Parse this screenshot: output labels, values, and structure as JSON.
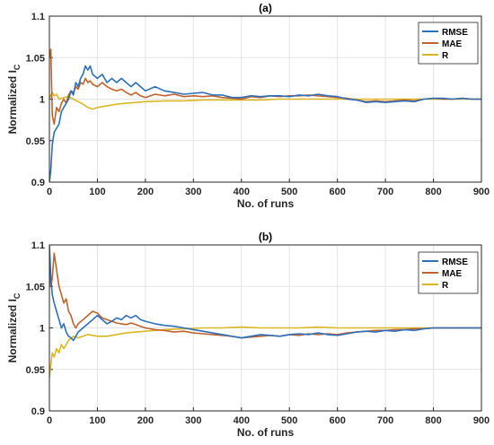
{
  "chart_data": [
    {
      "type": "line",
      "title": "(a)",
      "xlabel": "No. of runs",
      "ylabel": "Normalized I",
      "ylabel_sub": "C",
      "xlim": [
        0,
        900
      ],
      "ylim": [
        0.9,
        1.1
      ],
      "xticks": [
        "0",
        "100",
        "200",
        "300",
        "400",
        "500",
        "600",
        "700",
        "800",
        "900"
      ],
      "yticks": [
        "0.9",
        "0.95",
        "1",
        "1.05",
        "1.1"
      ],
      "grid": true,
      "legend": "top-right",
      "series": [
        {
          "name": "RMSE",
          "color": "#2e6fba",
          "x": [
            0,
            3,
            6,
            10,
            15,
            20,
            25,
            30,
            35,
            40,
            45,
            50,
            55,
            60,
            65,
            70,
            75,
            80,
            85,
            90,
            100,
            110,
            120,
            130,
            140,
            150,
            160,
            170,
            180,
            190,
            200,
            220,
            240,
            260,
            280,
            300,
            320,
            340,
            360,
            380,
            400,
            420,
            440,
            460,
            480,
            500,
            520,
            540,
            560,
            580,
            600,
            620,
            640,
            660,
            680,
            700,
            720,
            740,
            760,
            780,
            800,
            820,
            840,
            860,
            880,
            900
          ],
          "y": [
            0.9,
            0.915,
            0.945,
            0.96,
            0.965,
            0.97,
            0.985,
            0.99,
            0.995,
            1.0,
            1.01,
            1.005,
            1.02,
            1.015,
            1.025,
            1.03,
            1.04,
            1.035,
            1.04,
            1.03,
            1.025,
            1.03,
            1.02,
            1.025,
            1.02,
            1.025,
            1.02,
            1.015,
            1.02,
            1.015,
            1.01,
            1.015,
            1.01,
            1.008,
            1.006,
            1.007,
            1.008,
            1.005,
            1.005,
            1.002,
            1.002,
            1.004,
            1.003,
            1.004,
            1.004,
            1.003,
            1.005,
            1.004,
            1.006,
            1.004,
            1.003,
            1.0,
            0.999,
            0.996,
            0.997,
            0.996,
            0.997,
            0.998,
            0.997,
            1.0,
            1.001,
            1.001,
            1.0,
            1.001,
            1.0,
            1.0
          ]
        },
        {
          "name": "MAE",
          "color": "#c0622b",
          "x": [
            0,
            3,
            6,
            10,
            15,
            20,
            25,
            30,
            35,
            40,
            45,
            50,
            55,
            60,
            65,
            70,
            75,
            80,
            85,
            90,
            100,
            110,
            120,
            130,
            140,
            150,
            160,
            170,
            180,
            190,
            200,
            220,
            240,
            260,
            280,
            300,
            320,
            340,
            360,
            380,
            400,
            420,
            440,
            460,
            480,
            500,
            520,
            540,
            560,
            580,
            600,
            620,
            640,
            660,
            680,
            700,
            720,
            740,
            760,
            780,
            800,
            820,
            840,
            860,
            880,
            900
          ],
          "y": [
            1.05,
            1.06,
            0.98,
            0.97,
            0.99,
            0.985,
            0.995,
            1.0,
            0.995,
            1.005,
            1.01,
            1.008,
            1.015,
            1.012,
            1.02,
            1.018,
            1.025,
            1.02,
            1.022,
            1.018,
            1.015,
            1.02,
            1.015,
            1.012,
            1.01,
            1.012,
            1.008,
            1.005,
            1.008,
            1.004,
            1.002,
            1.006,
            1.004,
            1.006,
            1.003,
            1.004,
            1.003,
            1.004,
            1.002,
            1.001,
            1.0,
            1.003,
            1.002,
            1.004,
            1.003,
            1.004,
            1.004,
            1.005,
            1.004,
            1.003,
            1.002,
            1.001,
            0.999,
            0.997,
            0.998,
            0.997,
            0.998,
            0.999,
            0.998,
            1.0,
            1.001,
            1.0,
            1.0,
            1.001,
            1.0,
            1.0
          ]
        },
        {
          "name": "R",
          "color": "#dab825",
          "x": [
            0,
            3,
            6,
            10,
            15,
            20,
            30,
            40,
            50,
            60,
            70,
            80,
            90,
            100,
            120,
            140,
            160,
            180,
            200,
            240,
            280,
            320,
            360,
            400,
            440,
            480,
            520,
            560,
            600,
            650,
            700,
            750,
            800,
            850,
            900
          ],
          "y": [
            1.0,
            1.005,
            1.008,
            1.004,
            1.006,
            1.0,
            1.002,
            1.003,
            1.0,
            0.997,
            0.994,
            0.99,
            0.988,
            0.99,
            0.992,
            0.994,
            0.995,
            0.996,
            0.997,
            0.998,
            0.998,
            0.999,
            0.999,
            0.999,
            0.999,
            1.0,
            1.0,
            1.0,
            1.0,
            1.0,
            1.0,
            1.0,
            1.0,
            1.0,
            1.0
          ]
        }
      ]
    },
    {
      "type": "line",
      "title": "(b)",
      "xlabel": "No. of runs",
      "ylabel": "Normalized I",
      "ylabel_sub": "C",
      "xlim": [
        0,
        900
      ],
      "ylim": [
        0.9,
        1.1
      ],
      "xticks": [
        "0",
        "100",
        "200",
        "300",
        "400",
        "500",
        "600",
        "700",
        "800",
        "900"
      ],
      "yticks": [
        "0.9",
        "0.95",
        "1",
        "1.05",
        "1.1"
      ],
      "grid": true,
      "legend": "top-right",
      "series": [
        {
          "name": "RMSE",
          "color": "#2e6fba",
          "x": [
            0,
            3,
            6,
            10,
            15,
            20,
            25,
            30,
            35,
            40,
            45,
            50,
            55,
            60,
            70,
            80,
            90,
            100,
            110,
            120,
            130,
            140,
            150,
            160,
            170,
            180,
            190,
            200,
            220,
            240,
            260,
            280,
            300,
            320,
            340,
            360,
            380,
            400,
            420,
            440,
            460,
            480,
            500,
            520,
            540,
            560,
            580,
            600,
            620,
            640,
            660,
            680,
            700,
            720,
            740,
            760,
            780,
            800,
            820,
            840,
            860,
            880,
            900
          ],
          "y": [
            1.1,
            1.06,
            1.04,
            1.03,
            1.02,
            1.01,
            1.0,
            1.005,
            0.995,
            0.99,
            0.988,
            0.985,
            0.99,
            0.995,
            1.0,
            1.005,
            1.01,
            1.015,
            1.01,
            1.005,
            1.008,
            1.012,
            1.01,
            1.015,
            1.012,
            1.015,
            1.01,
            1.008,
            1.005,
            1.003,
            1.002,
            1.0,
            0.998,
            0.996,
            0.994,
            0.992,
            0.99,
            0.988,
            0.99,
            0.992,
            0.991,
            0.99,
            0.992,
            0.993,
            0.992,
            0.994,
            0.992,
            0.991,
            0.993,
            0.995,
            0.996,
            0.995,
            0.997,
            0.996,
            0.998,
            0.997,
            0.999,
            1.0,
            1.0,
            1.0,
            1.0,
            1.0,
            1.0
          ]
        },
        {
          "name": "MAE",
          "color": "#c0622b",
          "x": [
            0,
            3,
            6,
            10,
            15,
            20,
            25,
            30,
            35,
            40,
            45,
            50,
            55,
            60,
            70,
            80,
            90,
            100,
            110,
            120,
            130,
            140,
            150,
            160,
            170,
            180,
            190,
            200,
            220,
            240,
            260,
            280,
            300,
            320,
            340,
            360,
            380,
            400,
            420,
            440,
            460,
            480,
            500,
            520,
            540,
            560,
            580,
            600,
            620,
            640,
            660,
            680,
            700,
            720,
            740,
            760,
            780,
            800,
            820,
            840,
            860,
            880,
            900
          ],
          "y": [
            1.08,
            1.05,
            1.06,
            1.09,
            1.07,
            1.05,
            1.04,
            1.03,
            1.035,
            1.02,
            1.015,
            1.005,
            1.0,
            1.005,
            1.01,
            1.015,
            1.02,
            1.018,
            1.012,
            1.01,
            1.008,
            1.006,
            1.005,
            1.004,
            1.006,
            1.004,
            1.002,
            1.0,
            0.998,
            0.997,
            0.995,
            0.996,
            0.994,
            0.993,
            0.992,
            0.991,
            0.99,
            0.988,
            0.989,
            0.99,
            0.991,
            0.99,
            0.992,
            0.991,
            0.993,
            0.992,
            0.993,
            0.992,
            0.994,
            0.995,
            0.996,
            0.997,
            0.997,
            0.998,
            0.998,
            0.999,
            0.999,
            1.0,
            1.0,
            1.0,
            1.0,
            1.0,
            1.0
          ]
        },
        {
          "name": "R",
          "color": "#dab825",
          "x": [
            0,
            3,
            6,
            10,
            15,
            20,
            25,
            30,
            40,
            50,
            60,
            70,
            80,
            90,
            100,
            120,
            140,
            160,
            180,
            200,
            240,
            280,
            320,
            360,
            400,
            440,
            480,
            520,
            560,
            600,
            650,
            700,
            750,
            800,
            850,
            900
          ],
          "y": [
            0.94,
            0.955,
            0.97,
            0.965,
            0.975,
            0.97,
            0.98,
            0.975,
            0.985,
            0.99,
            0.988,
            0.99,
            0.992,
            0.991,
            0.99,
            0.99,
            0.992,
            0.994,
            0.995,
            0.996,
            0.998,
            0.999,
            1.0,
            1.0,
            1.001,
            1.0,
            1.0,
            1.0,
            1.001,
            1.0,
            1.0,
            1.0,
            1.0,
            1.0,
            1.0,
            1.0
          ]
        }
      ]
    }
  ]
}
